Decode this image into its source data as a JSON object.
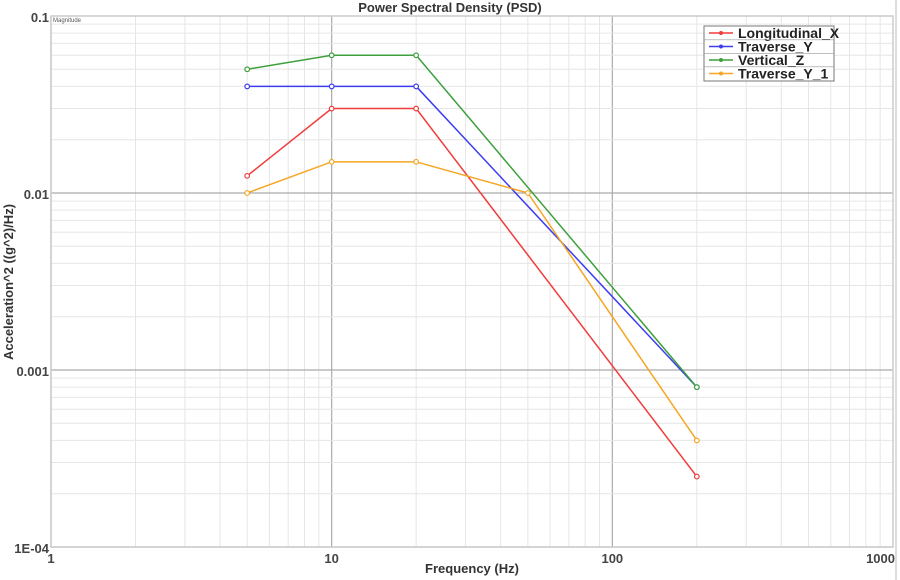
{
  "chart_data": {
    "type": "line",
    "title": "Power Spectral Density (PSD)",
    "xlabel": "Frequency (Hz)",
    "ylabel": "Acceleration^2 ((g^2)/Hz)",
    "corner_label": "Magnitude",
    "x_scale": "log",
    "y_scale": "log",
    "xlim": [
      1,
      1000
    ],
    "ylim": [
      0.0001,
      0.1
    ],
    "x_ticks": [
      {
        "value": 1,
        "label": "1"
      },
      {
        "value": 10,
        "label": "10"
      },
      {
        "value": 100,
        "label": "100"
      },
      {
        "value": 1000,
        "label": "1000"
      }
    ],
    "y_ticks": [
      {
        "value": 0.1,
        "label": "0.1"
      },
      {
        "value": 0.01,
        "label": "0.01"
      },
      {
        "value": 0.001,
        "label": "0.001"
      },
      {
        "value": 0.0001,
        "label": "1E-04"
      }
    ],
    "grid": true,
    "legend_position": "top-right",
    "series": [
      {
        "name": "Longitudinal_X",
        "color": "#f03c3c",
        "x": [
          5,
          10,
          20,
          200
        ],
        "y": [
          0.0125,
          0.03,
          0.03,
          0.00025
        ]
      },
      {
        "name": "Traverse_Y",
        "color": "#3c3cf0",
        "x": [
          5,
          10,
          20,
          200
        ],
        "y": [
          0.04,
          0.04,
          0.04,
          0.0008
        ]
      },
      {
        "name": "Vertical_Z",
        "color": "#3ca03c",
        "x": [
          5,
          10,
          20,
          200
        ],
        "y": [
          0.05,
          0.06,
          0.06,
          0.0008
        ]
      },
      {
        "name": "Traverse_Y_1",
        "color": "#f5a623",
        "x": [
          5,
          10,
          20,
          50,
          200
        ],
        "y": [
          0.01,
          0.015,
          0.015,
          0.01,
          0.0004
        ]
      }
    ]
  }
}
